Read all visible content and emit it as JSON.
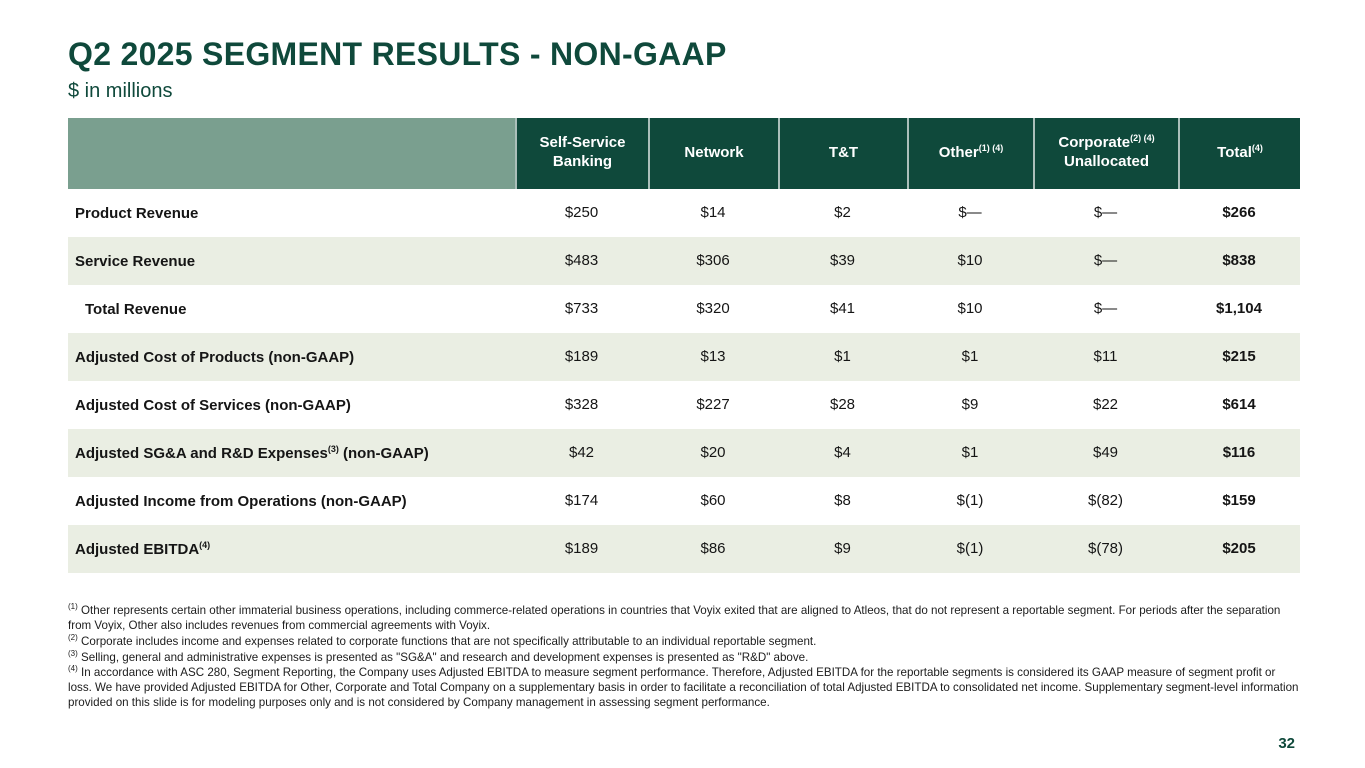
{
  "slide": {
    "title": "Q2 2025 SEGMENT RESULTS - NON-GAAP",
    "subtitle": "$ in millions",
    "page_number": "32"
  },
  "colors": {
    "header_green": "#0f493b",
    "sage_green": "#7a9f8f",
    "row_shade": "#eaeee3",
    "text": "#151515"
  },
  "table": {
    "columns": [
      {
        "line1": "Self-Service",
        "sup": "",
        "line2": "Banking"
      },
      {
        "line1": "Network",
        "sup": "",
        "line2": ""
      },
      {
        "line1": "T&T",
        "sup": "",
        "line2": ""
      },
      {
        "line1": "Other",
        "sup": "(1) (4)",
        "line2": ""
      },
      {
        "line1": "Corporate",
        "sup": "(2) (4)",
        "line2": "Unallocated"
      },
      {
        "line1": "Total",
        "sup": "(4)",
        "line2": ""
      }
    ],
    "rows": [
      {
        "label_pre": "Product Revenue",
        "sup": "",
        "label_post": "",
        "values": [
          "$250",
          "$14",
          "$2",
          "$—",
          "$—"
        ],
        "total": "$266"
      },
      {
        "label_pre": "Service Revenue",
        "sup": "",
        "label_post": "",
        "values": [
          "$483",
          "$306",
          "$39",
          "$10",
          "$—"
        ],
        "total": "$838"
      },
      {
        "label_pre": "Total Revenue",
        "sup": "",
        "label_post": "",
        "values": [
          "$733",
          "$320",
          "$41",
          "$10",
          "$—"
        ],
        "total": "$1,104"
      },
      {
        "label_pre": "Adjusted Cost of Products (non-GAAP)",
        "sup": "",
        "label_post": "",
        "values": [
          "$189",
          "$13",
          "$1",
          "$1",
          "$11"
        ],
        "total": "$215"
      },
      {
        "label_pre": "Adjusted Cost of Services (non-GAAP)",
        "sup": "",
        "label_post": "",
        "values": [
          "$328",
          "$227",
          "$28",
          "$9",
          "$22"
        ],
        "total": "$614"
      },
      {
        "label_pre": "Adjusted SG&A and R&D Expenses",
        "sup": "(3)",
        "label_post": " (non-GAAP)",
        "values": [
          "$42",
          "$20",
          "$4",
          "$1",
          "$49"
        ],
        "total": "$116"
      },
      {
        "label_pre": "Adjusted Income from Operations (non-GAAP)",
        "sup": "",
        "label_post": "",
        "values": [
          "$174",
          "$60",
          "$8",
          "$(1)",
          "$(82)"
        ],
        "total": "$159"
      },
      {
        "label_pre": "Adjusted EBITDA",
        "sup": "(4)",
        "label_post": "",
        "values": [
          "$189",
          "$86",
          "$9",
          "$(1)",
          "$(78)"
        ],
        "total": "$205"
      }
    ]
  },
  "footnotes": [
    {
      "sup": "(1)",
      "text": "Other represents certain other immaterial business operations, including commerce-related operations in countries that Voyix exited that are aligned to Atleos, that do not represent a reportable segment. For periods after the separation from Voyix, Other also includes revenues from commercial agreements with Voyix."
    },
    {
      "sup": "(2)",
      "text": "Corporate includes income and expenses related to corporate functions that are not specifically attributable to an individual reportable segment."
    },
    {
      "sup": "(3)",
      "text": "Selling, general and administrative expenses is presented as \"SG&A\" and research and development expenses is presented as \"R&D\" above."
    },
    {
      "sup": "(4)",
      "text": "In accordance with ASC 280, Segment Reporting, the Company uses Adjusted EBITDA to measure segment performance. Therefore, Adjusted EBITDA for the reportable segments is considered its GAAP measure of segment profit or loss. We have provided Adjusted EBITDA for Other, Corporate and Total Company on a supplementary basis in order to facilitate a reconciliation of total Adjusted EBITDA to consolidated net income. Supplementary segment-level information provided on this slide is for modeling purposes only and is not considered by Company management in assessing segment performance."
    }
  ]
}
